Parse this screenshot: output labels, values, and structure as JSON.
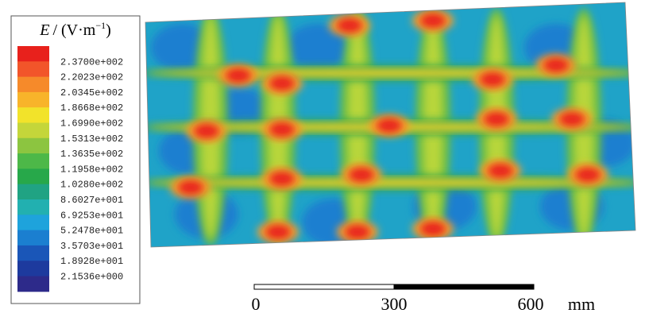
{
  "legend": {
    "title": {
      "symbol": "E",
      "unit": "/ (V·m",
      "exponent": "−1",
      "close": ")"
    },
    "labels": [
      "2.3700e+002",
      "2.2023e+002",
      "2.0345e+002",
      "1.8668e+002",
      "1.6990e+002",
      "1.5313e+002",
      "1.3635e+002",
      "1.1958e+002",
      "1.0280e+002",
      "8.6027e+001",
      "6.9253e+001",
      "5.2478e+001",
      "3.5703e+001",
      "1.8928e+001",
      "2.1536e+000"
    ]
  },
  "scale_bar": {
    "labels": [
      "0",
      "300",
      "600"
    ],
    "unit": "mm"
  }
}
